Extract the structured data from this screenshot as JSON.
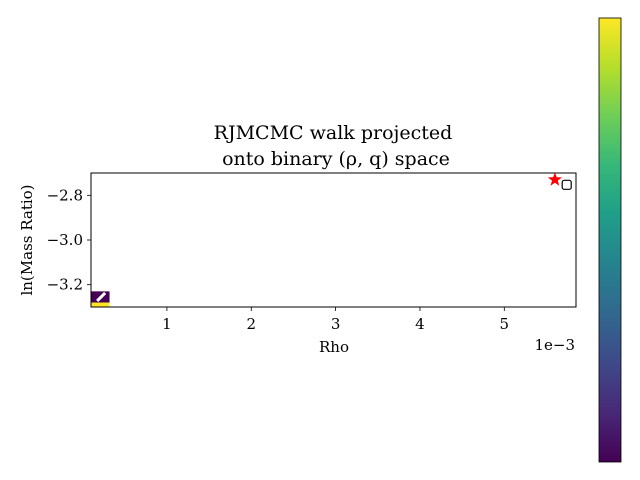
{
  "chart_data": {
    "type": "heatmap",
    "title_line1": "RJMCMC walk projected",
    "title_line2": "onto binary (ρ, q) space",
    "xlabel": "Rho",
    "ylabel": "ln(Mass Ratio)",
    "x_offset_label": "1e−3",
    "xlim": [
      0.1,
      5.85
    ],
    "ylim": [
      -3.3,
      -2.7
    ],
    "xticks": [
      {
        "value": 1,
        "label": "1"
      },
      {
        "value": 2,
        "label": "2"
      },
      {
        "value": 3,
        "label": "3"
      },
      {
        "value": 4,
        "label": "4"
      },
      {
        "value": 5,
        "label": "5"
      }
    ],
    "yticks": [
      {
        "value": -2.8,
        "label": "−2.8"
      },
      {
        "value": -3.0,
        "label": "−3.0"
      },
      {
        "value": -3.2,
        "label": "−3.2"
      }
    ],
    "cells": [
      {
        "x0": 0.1,
        "x1": 0.32,
        "y0": -3.23,
        "y1": -3.28,
        "color": "#440154"
      },
      {
        "x0": 0.1,
        "x1": 0.32,
        "y0": -3.28,
        "y1": -3.3,
        "color": "#fde725"
      }
    ],
    "walk_markers": [
      {
        "x": 0.22,
        "y": -3.255,
        "shape": "line"
      },
      {
        "x": 5.74,
        "y": -2.753,
        "shape": "square"
      }
    ],
    "star": {
      "x": 5.6,
      "y": -2.73,
      "color": "#ff0000"
    },
    "colorbar": {
      "colormap": "viridis",
      "stops": [
        "#440154",
        "#482878",
        "#3e4989",
        "#31688e",
        "#26828e",
        "#1f9e89",
        "#35b779",
        "#6ece58",
        "#b5de2b",
        "#fde725"
      ]
    }
  }
}
